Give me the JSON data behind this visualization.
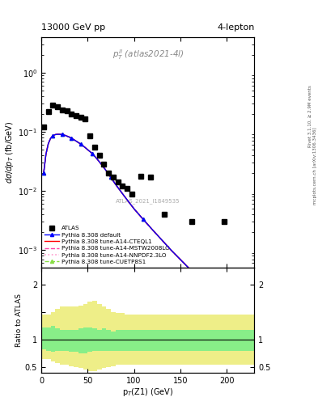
{
  "title_left": "13000 GeV pp",
  "title_right": "4-lepton",
  "annotation": "$p_T^{ll}$ (atlas2021-4l)",
  "watermark": "ATLAS_2021_I1849535",
  "right_label1": "Rivet 3.1.10, ≥ 2.9M events",
  "right_label2": "mcplots.cern.ch [arXiv:1306.3436]",
  "ylabel_main": "dσ/dp$_T$ (fb/GeV)",
  "ylabel_ratio": "Ratio to ATLAS",
  "xlabel": "p$_T$(Z1) (GeV)",
  "xlim": [
    0,
    230
  ],
  "ylim_main": [
    0.0005,
    4.0
  ],
  "ylim_ratio": [
    0.4,
    2.3
  ],
  "atlas_data_x": [
    2.5,
    7.5,
    12.5,
    17.5,
    22.5,
    27.5,
    32.5,
    37.5,
    42.5,
    47.5,
    52.5,
    57.5,
    62.5,
    67.5,
    72.5,
    77.5,
    82.5,
    87.5,
    92.5,
    97.5,
    107.5,
    117.5,
    132.5,
    162.5,
    197.5
  ],
  "atlas_data_y": [
    0.12,
    0.22,
    0.28,
    0.265,
    0.235,
    0.225,
    0.2,
    0.19,
    0.178,
    0.165,
    0.085,
    0.055,
    0.04,
    0.028,
    0.02,
    0.017,
    0.014,
    0.012,
    0.011,
    0.009,
    0.018,
    0.017,
    0.004,
    0.003,
    0.003
  ],
  "pythia_x": [
    2.5,
    5,
    7.5,
    10,
    12.5,
    15,
    17.5,
    20,
    22.5,
    25,
    27.5,
    30,
    32.5,
    35,
    37.5,
    40,
    42.5,
    45,
    47.5,
    50,
    55,
    60,
    65,
    70,
    75,
    80,
    90,
    100,
    110,
    120,
    140,
    160,
    180,
    200,
    220
  ],
  "pythia_y": [
    0.02,
    0.042,
    0.063,
    0.078,
    0.086,
    0.09,
    0.091,
    0.091,
    0.09,
    0.088,
    0.085,
    0.082,
    0.078,
    0.074,
    0.07,
    0.066,
    0.062,
    0.058,
    0.054,
    0.05,
    0.043,
    0.035,
    0.028,
    0.022,
    0.017,
    0.013,
    0.008,
    0.005,
    0.0033,
    0.0022,
    0.001,
    0.00048,
    0.00022,
    0.0001,
    4.8e-05
  ],
  "ratio_band_x_edges": [
    0,
    5,
    10,
    15,
    20,
    25,
    30,
    35,
    40,
    45,
    50,
    55,
    60,
    65,
    70,
    75,
    80,
    90,
    100,
    110,
    120,
    130,
    140,
    160,
    180,
    200,
    230
  ],
  "ratio_green_upper": [
    1.22,
    1.22,
    1.25,
    1.2,
    1.18,
    1.18,
    1.18,
    1.17,
    1.2,
    1.22,
    1.22,
    1.2,
    1.17,
    1.2,
    1.18,
    1.15,
    1.17,
    1.17,
    1.17,
    1.17,
    1.17,
    1.17,
    1.17,
    1.17,
    1.17,
    1.17
  ],
  "ratio_green_lower": [
    0.82,
    0.8,
    0.78,
    0.8,
    0.8,
    0.8,
    0.78,
    0.78,
    0.75,
    0.75,
    0.78,
    0.8,
    0.8,
    0.8,
    0.8,
    0.8,
    0.8,
    0.8,
    0.8,
    0.8,
    0.8,
    0.8,
    0.8,
    0.8,
    0.8,
    0.8
  ],
  "ratio_yellow_upper": [
    1.45,
    1.45,
    1.5,
    1.55,
    1.6,
    1.6,
    1.6,
    1.6,
    1.62,
    1.65,
    1.68,
    1.7,
    1.65,
    1.6,
    1.55,
    1.5,
    1.48,
    1.45,
    1.45,
    1.45,
    1.45,
    1.45,
    1.45,
    1.45,
    1.45,
    1.45
  ],
  "ratio_yellow_lower": [
    0.65,
    0.65,
    0.6,
    0.58,
    0.55,
    0.55,
    0.52,
    0.5,
    0.48,
    0.45,
    0.42,
    0.42,
    0.45,
    0.48,
    0.5,
    0.52,
    0.55,
    0.55,
    0.55,
    0.55,
    0.55,
    0.55,
    0.55,
    0.55,
    0.55,
    0.55
  ],
  "colors": {
    "atlas": "black",
    "pythia_default": "blue",
    "cteql1": "red",
    "mstw": "#ff44aa",
    "nnpdf": "#ff99cc",
    "cuetp": "#88dd44",
    "green_band": "#88ee88",
    "yellow_band": "#eeee88"
  }
}
